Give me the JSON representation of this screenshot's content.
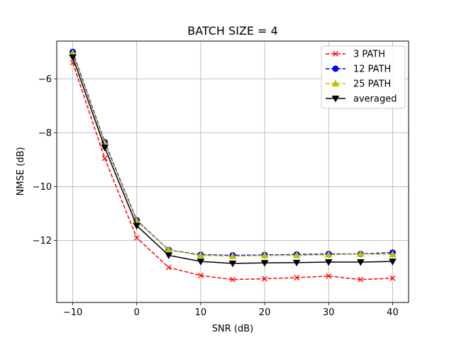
{
  "chart_data": {
    "type": "line",
    "title": "BATCH SIZE = 4",
    "xlabel": "SNR (dB)",
    "ylabel": "NMSE (dB)",
    "xlim": [
      -12.5,
      42.5
    ],
    "ylim": [
      -14.3,
      -4.6
    ],
    "xticks": [
      -10,
      0,
      10,
      20,
      30,
      40
    ],
    "xtick_labels": [
      "−10",
      "0",
      "10",
      "20",
      "30",
      "40"
    ],
    "yticks": [
      -6,
      -8,
      -10,
      -12
    ],
    "ytick_labels": [
      "−6",
      "−8",
      "−10",
      "−12"
    ],
    "grid": true,
    "legend_position": "top-right",
    "x": [
      -10,
      -5,
      0,
      5,
      10,
      15,
      20,
      25,
      30,
      35,
      40
    ],
    "series": [
      {
        "name": "3 PATH",
        "color": "#ff0000",
        "dash": "dashed",
        "marker": "x",
        "values": [
          -5.4,
          -8.95,
          -11.9,
          -13.0,
          -13.3,
          -13.45,
          -13.42,
          -13.38,
          -13.32,
          -13.45,
          -13.4
        ]
      },
      {
        "name": "12 PATH",
        "color": "#0000ff",
        "dash": "dashed",
        "marker": "circle",
        "values": [
          -5.0,
          -8.35,
          -11.25,
          -12.35,
          -12.53,
          -12.55,
          -12.54,
          -12.52,
          -12.5,
          -12.5,
          -12.45
        ]
      },
      {
        "name": "25 PATH",
        "color": "#bfbf00",
        "dash": "dashed",
        "marker": "triangle-up",
        "values": [
          -5.05,
          -8.4,
          -11.28,
          -12.35,
          -12.55,
          -12.58,
          -12.56,
          -12.55,
          -12.53,
          -12.5,
          -12.52
        ]
      },
      {
        "name": "averaged",
        "color": "#000000",
        "dash": "solid",
        "marker": "triangle-down",
        "values": [
          -5.2,
          -8.55,
          -11.45,
          -12.55,
          -12.78,
          -12.85,
          -12.83,
          -12.82,
          -12.8,
          -12.8,
          -12.78
        ]
      }
    ]
  }
}
